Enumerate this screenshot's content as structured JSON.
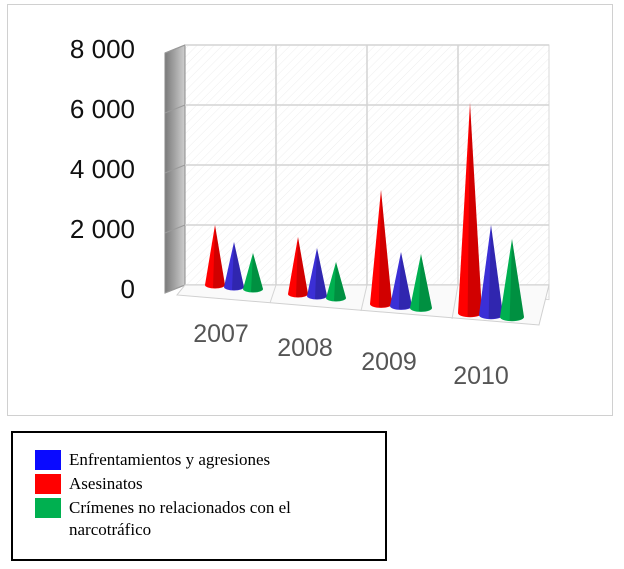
{
  "chart_data": {
    "type": "bar",
    "bar_shape": "cone",
    "view": "3d",
    "categories": [
      "2007",
      "2008",
      "2009",
      "2010"
    ],
    "y_tick_labels": [
      "0",
      "2 000",
      "4 000",
      "6 000",
      "8 000"
    ],
    "ylim": [
      0,
      8000
    ],
    "grid": true,
    "legend_position": "bottom",
    "series": [
      {
        "name": "Asesinatos",
        "color": "#ff0000",
        "values": [
          2000,
          1900,
          3800,
          7000
        ]
      },
      {
        "name": "Enfrentamientos y agresiones",
        "color": "#3b2fd6",
        "values": [
          1500,
          1600,
          1800,
          3000
        ]
      },
      {
        "name": "Crímenes no relacionados con el narcotráfico",
        "color": "#00b050",
        "values": [
          1200,
          1200,
          1800,
          2600
        ]
      }
    ]
  },
  "legend": {
    "items": [
      {
        "label": "Enfrentamientos y agresiones",
        "color": "#0a0aff"
      },
      {
        "label": "Asesinatos",
        "color": "#ff0000"
      },
      {
        "label": "Crímenes no relacionados con el narcotráfico",
        "color": "#00b050"
      }
    ]
  }
}
